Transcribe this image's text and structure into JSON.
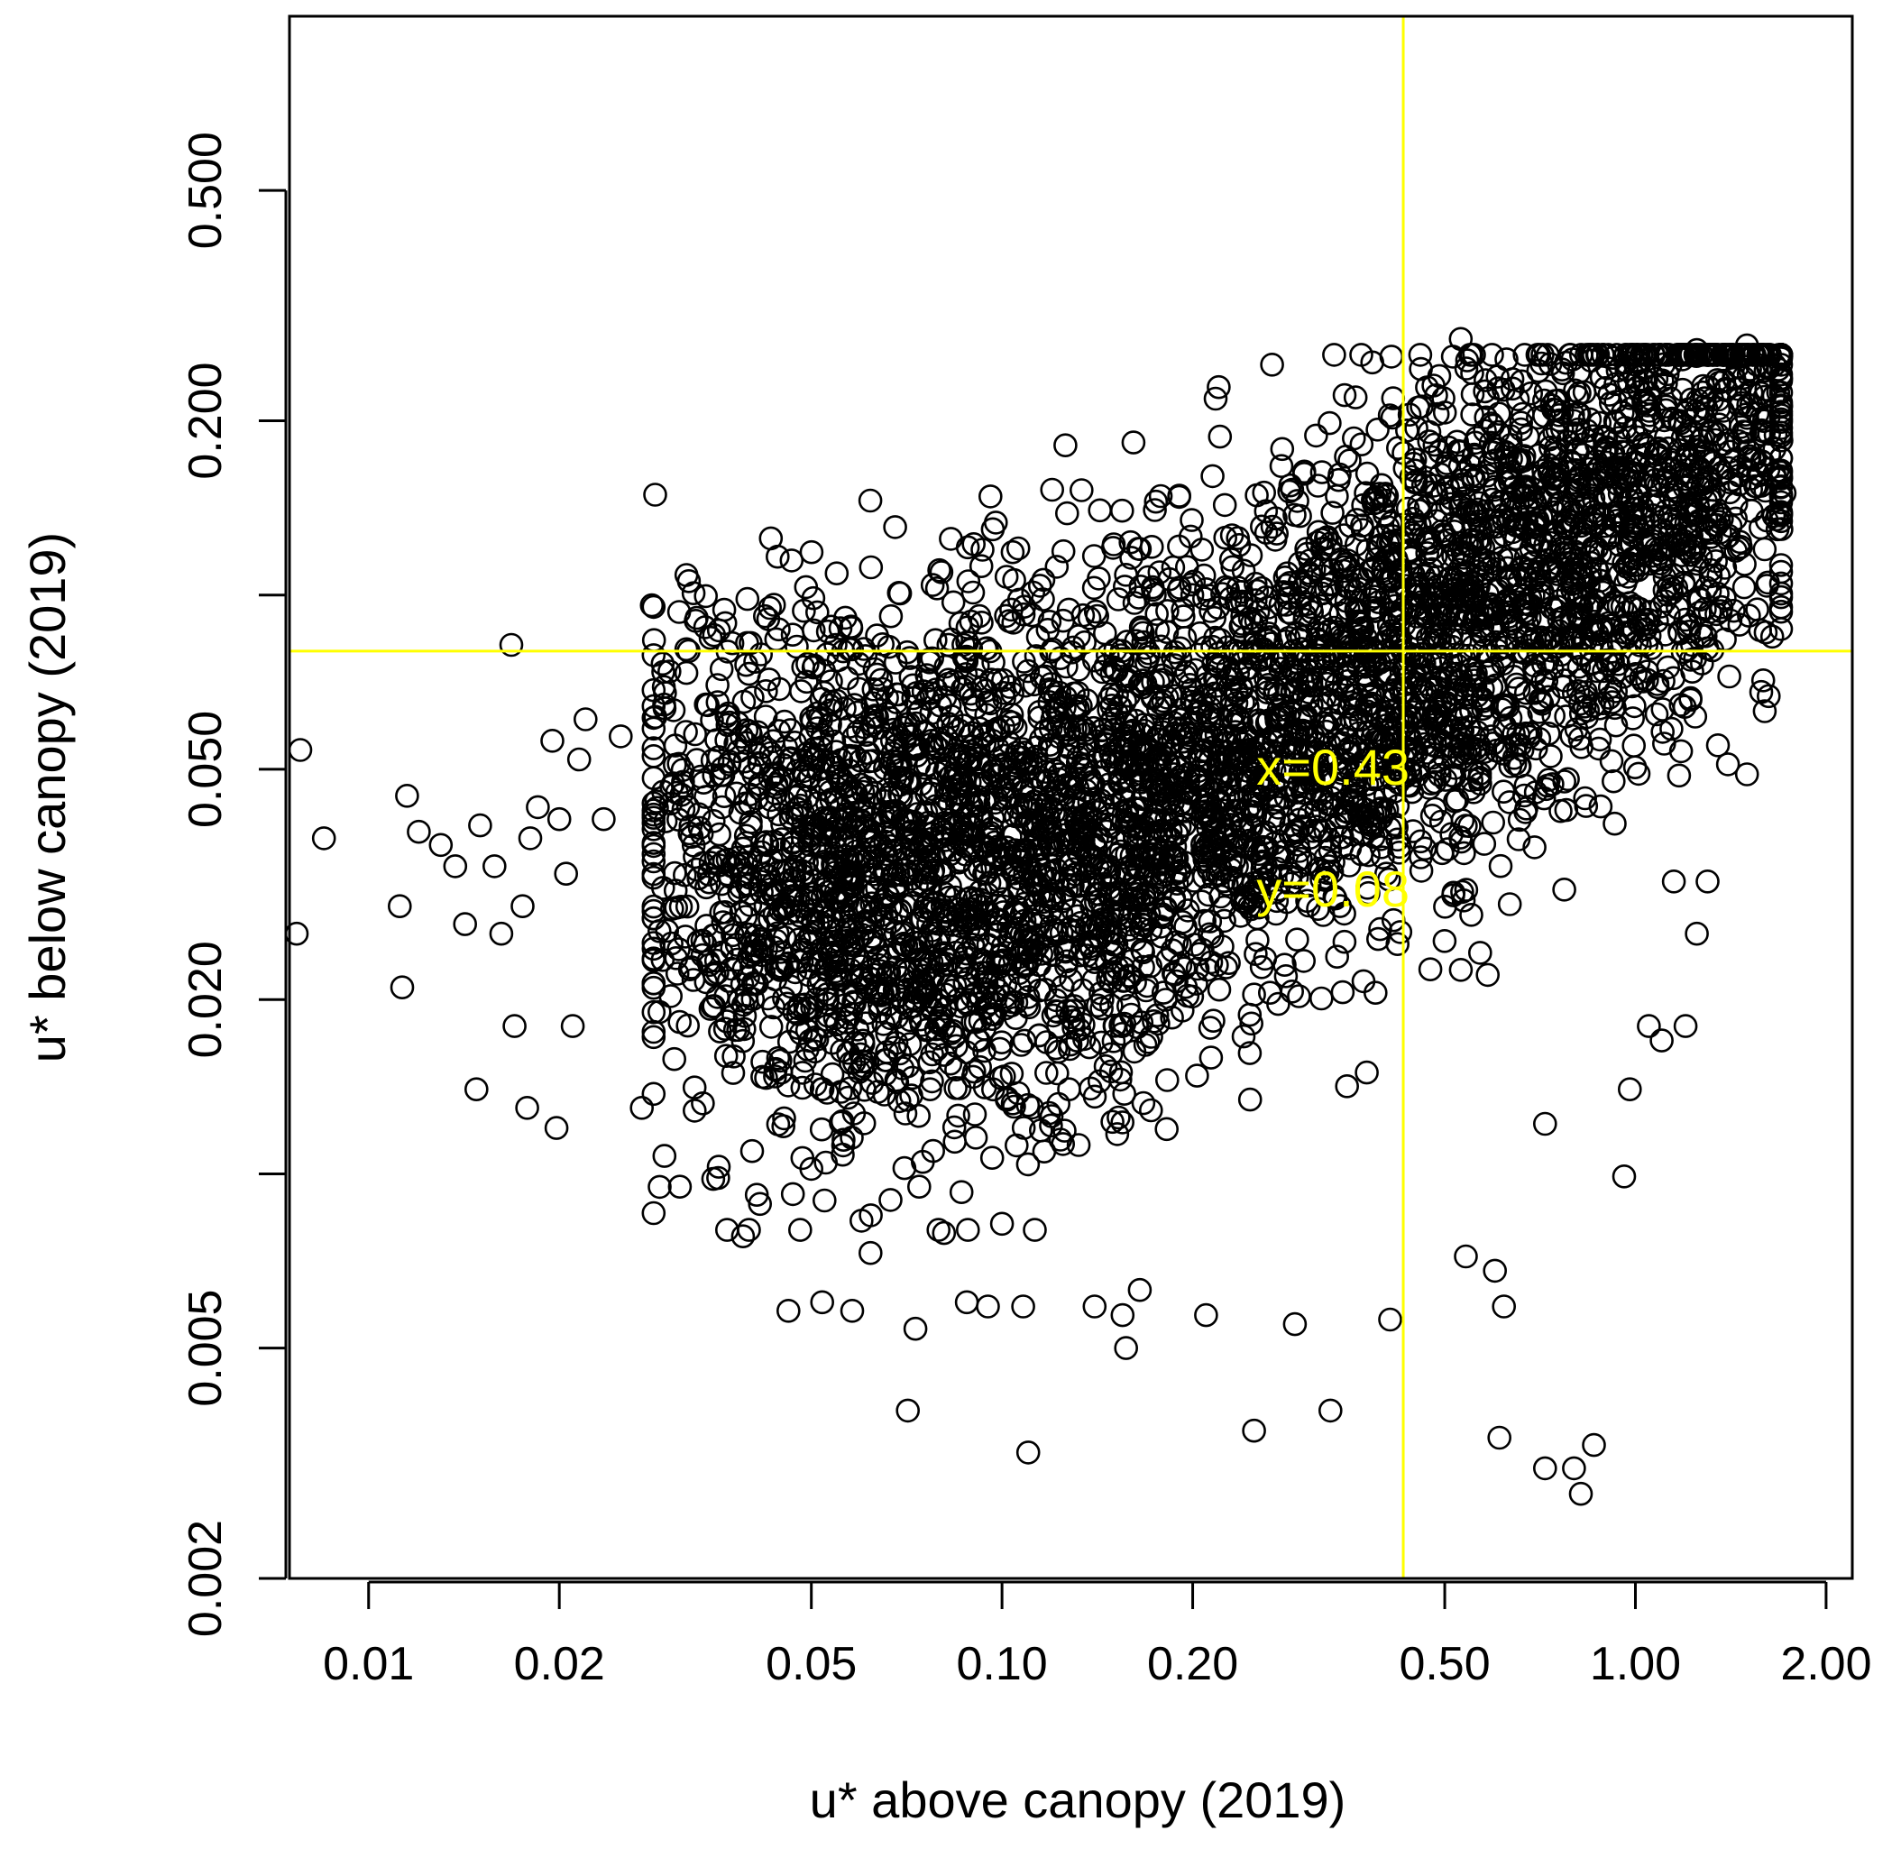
{
  "chart_data": {
    "type": "scatter",
    "title": "",
    "xlabel": "u* above canopy (2019)",
    "ylabel": "u* below canopy (2019)",
    "x_scale": "log",
    "y_scale": "log",
    "xlim": [
      0.0075,
      2.2
    ],
    "ylim": [
      0.002,
      1.0
    ],
    "x_ticks": [
      0.01,
      0.02,
      0.05,
      0.1,
      0.2,
      0.5,
      1.0,
      2.0
    ],
    "x_tick_labels": [
      "0.01",
      "0.02",
      "0.05",
      "0.10",
      "0.20",
      "0.50",
      "1.00",
      "2.00"
    ],
    "y_ticks": [
      0.002,
      0.005,
      0.01,
      0.02,
      0.05,
      0.1,
      0.2,
      0.5
    ],
    "y_tick_labels": [
      "0.002",
      "0.005",
      "",
      "0.020",
      "0.050",
      "",
      "0.200",
      "0.500"
    ],
    "grid": false,
    "marker": "open-circle",
    "marker_color": "#000000",
    "guide_color": "#ffff00",
    "guide_lines": {
      "x": 0.43,
      "y": 0.08
    },
    "annotations": [
      "x=0.43",
      "y=0.08"
    ],
    "dense_region": {
      "description_points": "core cloud of points generated around these anchor values",
      "x_range": [
        0.03,
        1.7
      ],
      "y_range": [
        0.007,
        0.28
      ]
    },
    "outliers": [
      {
        "x": 0.0078,
        "y": 0.054
      },
      {
        "x": 0.0085,
        "y": 0.038
      },
      {
        "x": 0.0077,
        "y": 0.026
      },
      {
        "x": 0.0115,
        "y": 0.045
      },
      {
        "x": 0.0112,
        "y": 0.029
      },
      {
        "x": 0.0113,
        "y": 0.021
      },
      {
        "x": 0.012,
        "y": 0.039
      },
      {
        "x": 0.013,
        "y": 0.037
      },
      {
        "x": 0.0137,
        "y": 0.034
      },
      {
        "x": 0.0142,
        "y": 0.027
      },
      {
        "x": 0.015,
        "y": 0.04
      },
      {
        "x": 0.0158,
        "y": 0.034
      },
      {
        "x": 0.0162,
        "y": 0.026
      },
      {
        "x": 0.0148,
        "y": 0.014
      },
      {
        "x": 0.0168,
        "y": 0.082
      },
      {
        "x": 0.017,
        "y": 0.018
      },
      {
        "x": 0.0175,
        "y": 0.029
      },
      {
        "x": 0.018,
        "y": 0.038
      },
      {
        "x": 0.0185,
        "y": 0.043
      },
      {
        "x": 0.0178,
        "y": 0.013
      },
      {
        "x": 0.0195,
        "y": 0.056
      },
      {
        "x": 0.02,
        "y": 0.041
      },
      {
        "x": 0.0198,
        "y": 0.012
      },
      {
        "x": 0.0205,
        "y": 0.033
      },
      {
        "x": 0.021,
        "y": 0.018
      },
      {
        "x": 0.0215,
        "y": 0.052
      },
      {
        "x": 0.022,
        "y": 0.061
      },
      {
        "x": 0.0235,
        "y": 0.041
      },
      {
        "x": 0.025,
        "y": 0.057
      },
      {
        "x": 0.027,
        "y": 0.013
      },
      {
        "x": 0.028,
        "y": 0.096
      },
      {
        "x": 0.031,
        "y": 0.0095
      },
      {
        "x": 0.032,
        "y": 0.08
      },
      {
        "x": 0.034,
        "y": 0.088
      },
      {
        "x": 0.035,
        "y": 0.0098
      },
      {
        "x": 0.039,
        "y": 0.0078
      },
      {
        "x": 0.041,
        "y": 0.0092
      },
      {
        "x": 0.043,
        "y": 0.095
      },
      {
        "x": 0.046,
        "y": 0.0058
      },
      {
        "x": 0.05,
        "y": 0.0102
      },
      {
        "x": 0.052,
        "y": 0.006
      },
      {
        "x": 0.058,
        "y": 0.0058
      },
      {
        "x": 0.06,
        "y": 0.0083
      },
      {
        "x": 0.062,
        "y": 0.0073
      },
      {
        "x": 0.071,
        "y": 0.0039
      },
      {
        "x": 0.073,
        "y": 0.0054
      },
      {
        "x": 0.074,
        "y": 0.0095
      },
      {
        "x": 0.081,
        "y": 0.0079
      },
      {
        "x": 0.088,
        "y": 0.006
      },
      {
        "x": 0.095,
        "y": 0.0059
      },
      {
        "x": 0.09,
        "y": 0.101
      },
      {
        "x": 0.1,
        "y": 0.0082
      },
      {
        "x": 0.108,
        "y": 0.0059
      },
      {
        "x": 0.11,
        "y": 0.0033
      },
      {
        "x": 0.112,
        "y": 0.101
      },
      {
        "x": 0.12,
        "y": 0.152
      },
      {
        "x": 0.125,
        "y": 0.119
      },
      {
        "x": 0.14,
        "y": 0.0059
      },
      {
        "x": 0.155,
        "y": 0.0057
      },
      {
        "x": 0.157,
        "y": 0.005
      },
      {
        "x": 0.165,
        "y": 0.0063
      },
      {
        "x": 0.16,
        "y": 0.116
      },
      {
        "x": 0.175,
        "y": 0.145
      },
      {
        "x": 0.21,
        "y": 0.0057
      },
      {
        "x": 0.25,
        "y": 0.0036
      },
      {
        "x": 0.29,
        "y": 0.0055
      },
      {
        "x": 0.3,
        "y": 0.162
      },
      {
        "x": 0.32,
        "y": 0.163
      },
      {
        "x": 0.34,
        "y": 0.158
      },
      {
        "x": 0.33,
        "y": 0.0039
      },
      {
        "x": 0.41,
        "y": 0.0056
      },
      {
        "x": 0.44,
        "y": 0.205
      },
      {
        "x": 0.53,
        "y": 0.277
      },
      {
        "x": 0.58,
        "y": 0.235
      },
      {
        "x": 0.54,
        "y": 0.0072
      },
      {
        "x": 0.6,
        "y": 0.0068
      },
      {
        "x": 0.62,
        "y": 0.0059
      },
      {
        "x": 0.61,
        "y": 0.0035
      },
      {
        "x": 0.72,
        "y": 0.0031
      },
      {
        "x": 0.8,
        "y": 0.0031
      },
      {
        "x": 0.82,
        "y": 0.0028
      },
      {
        "x": 0.86,
        "y": 0.0034
      },
      {
        "x": 0.72,
        "y": 0.0122
      },
      {
        "x": 0.96,
        "y": 0.0099
      },
      {
        "x": 0.98,
        "y": 0.014
      },
      {
        "x": 1.05,
        "y": 0.018
      },
      {
        "x": 1.1,
        "y": 0.017
      },
      {
        "x": 1.2,
        "y": 0.018
      },
      {
        "x": 1.0,
        "y": 0.25
      },
      {
        "x": 1.25,
        "y": 0.265
      },
      {
        "x": 1.5,
        "y": 0.27
      },
      {
        "x": 1.6,
        "y": 0.22
      },
      {
        "x": 1.7,
        "y": 0.185
      },
      {
        "x": 1.72,
        "y": 0.15
      },
      {
        "x": 1.7,
        "y": 0.13
      },
      {
        "x": 1.58,
        "y": 0.068
      },
      {
        "x": 1.6,
        "y": 0.063
      },
      {
        "x": 1.5,
        "y": 0.049
      },
      {
        "x": 1.4,
        "y": 0.051
      },
      {
        "x": 1.35,
        "y": 0.055
      },
      {
        "x": 1.3,
        "y": 0.032
      },
      {
        "x": 1.25,
        "y": 0.026
      },
      {
        "x": 1.15,
        "y": 0.032
      }
    ]
  }
}
